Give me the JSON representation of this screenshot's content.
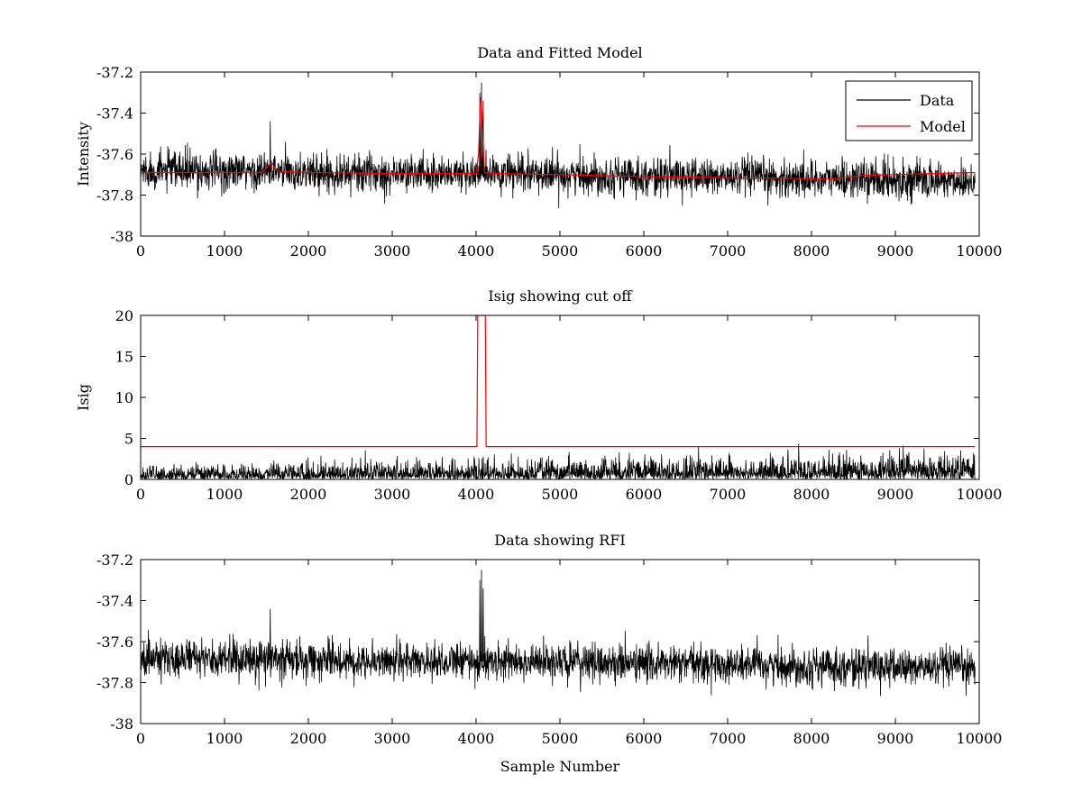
{
  "figure": {
    "title": "Data and Fitted Model / Isig showing cut off / Data showing RFI"
  },
  "chart_data": [
    {
      "type": "line",
      "title": "Data and Fitted Model",
      "xlabel": "",
      "ylabel": "Intensity",
      "xlim": [
        0,
        10000
      ],
      "ylim": [
        -38,
        -37.2
      ],
      "x_ticks": [
        0,
        1000,
        2000,
        3000,
        4000,
        5000,
        6000,
        7000,
        8000,
        9000,
        10000
      ],
      "y_ticks": [
        -37.2,
        -37.4,
        -37.6,
        -37.8,
        -38
      ],
      "x_tick_labels": [
        "0",
        "1000",
        "2000",
        "3000",
        "4000",
        "5000",
        "6000",
        "7000",
        "8000",
        "9000",
        "10000"
      ],
      "y_tick_labels": [
        "-37.2",
        "-37.4",
        "-37.6",
        "-37.8",
        "-38"
      ],
      "legend": {
        "position": "top-right",
        "entries": [
          "Data",
          "Model"
        ]
      },
      "series": [
        {
          "name": "Data",
          "color": "#000000",
          "kind": "noise",
          "x_range": [
            0,
            9950
          ],
          "baseline": [
            [
              0,
              -37.68
            ],
            [
              2000,
              -37.69
            ],
            [
              5000,
              -37.7
            ],
            [
              8000,
              -37.72
            ],
            [
              9950,
              -37.73
            ]
          ],
          "noise_amplitude": 0.045,
          "spikes": [
            [
              1540,
              -37.44
            ],
            [
              4060,
              -37.25
            ],
            [
              4040,
              -37.3
            ],
            [
              4080,
              -37.34
            ]
          ]
        },
        {
          "name": "Model",
          "color": "#ff0000",
          "kind": "line",
          "points": [
            [
              0,
              -37.69
            ],
            [
              1000,
              -37.69
            ],
            [
              1450,
              -37.69
            ],
            [
              1520,
              -37.66
            ],
            [
              1560,
              -37.64
            ],
            [
              1620,
              -37.68
            ],
            [
              1700,
              -37.685
            ],
            [
              2000,
              -37.69
            ],
            [
              3000,
              -37.695
            ],
            [
              4000,
              -37.695
            ],
            [
              4030,
              -37.6
            ],
            [
              4050,
              -37.35
            ],
            [
              4060,
              -37.32
            ],
            [
              4075,
              -37.45
            ],
            [
              4100,
              -37.69
            ],
            [
              4200,
              -37.695
            ],
            [
              5000,
              -37.7
            ],
            [
              6000,
              -37.71
            ],
            [
              7000,
              -37.715
            ],
            [
              8000,
              -37.72
            ],
            [
              8300,
              -37.72
            ],
            [
              8600,
              -37.705
            ],
            [
              9000,
              -37.7
            ],
            [
              9950,
              -37.69
            ]
          ]
        }
      ]
    },
    {
      "type": "line",
      "title": "Isig showing cut off",
      "xlabel": "",
      "ylabel": "Isig",
      "xlim": [
        0,
        10000
      ],
      "ylim": [
        0,
        20
      ],
      "x_ticks": [
        0,
        1000,
        2000,
        3000,
        4000,
        5000,
        6000,
        7000,
        8000,
        9000,
        10000
      ],
      "y_ticks": [
        0,
        5,
        10,
        15,
        20
      ],
      "x_tick_labels": [
        "0",
        "1000",
        "2000",
        "3000",
        "4000",
        "5000",
        "6000",
        "7000",
        "8000",
        "9000",
        "10000"
      ],
      "y_tick_labels": [
        "0",
        "5",
        "10",
        "15",
        "20"
      ],
      "series": [
        {
          "name": "Isig",
          "color": "#000000",
          "kind": "noise_abs",
          "x_range": [
            0,
            9950
          ],
          "baseline": [
            [
              0,
              0.9
            ],
            [
              9950,
              1.0
            ]
          ],
          "noise_amplitude": 1.1
        },
        {
          "name": "Cut off",
          "color": "#ff0000",
          "kind": "line",
          "points": [
            [
              0,
              4
            ],
            [
              4010,
              4
            ],
            [
              4020,
              20
            ],
            [
              4030,
              20
            ],
            [
              4040,
              20
            ],
            [
              4110,
              20
            ],
            [
              4115,
              12
            ],
            [
              4120,
              4
            ],
            [
              9950,
              4
            ]
          ]
        }
      ]
    },
    {
      "type": "line",
      "title": "Data showing RFI",
      "xlabel": "Sample Number",
      "ylabel": "",
      "xlim": [
        0,
        10000
      ],
      "ylim": [
        -38,
        -37.2
      ],
      "x_ticks": [
        0,
        1000,
        2000,
        3000,
        4000,
        5000,
        6000,
        7000,
        8000,
        9000,
        10000
      ],
      "y_ticks": [
        -37.2,
        -37.4,
        -37.6,
        -37.8,
        -38
      ],
      "x_tick_labels": [
        "0",
        "1000",
        "2000",
        "3000",
        "4000",
        "5000",
        "6000",
        "7000",
        "8000",
        "9000",
        "10000"
      ],
      "y_tick_labels": [
        "-37.2",
        "-37.4",
        "-37.6",
        "-37.8",
        "-38"
      ],
      "series": [
        {
          "name": "Data",
          "color": "#000000",
          "kind": "noise",
          "x_range": [
            0,
            9950
          ],
          "baseline": [
            [
              0,
              -37.68
            ],
            [
              2000,
              -37.69
            ],
            [
              5000,
              -37.7
            ],
            [
              8000,
              -37.72
            ],
            [
              9950,
              -37.73
            ]
          ],
          "noise_amplitude": 0.045,
          "spikes": [
            [
              1540,
              -37.44
            ],
            [
              4060,
              -37.25
            ],
            [
              4040,
              -37.3
            ],
            [
              4080,
              -37.34
            ]
          ]
        }
      ]
    }
  ]
}
